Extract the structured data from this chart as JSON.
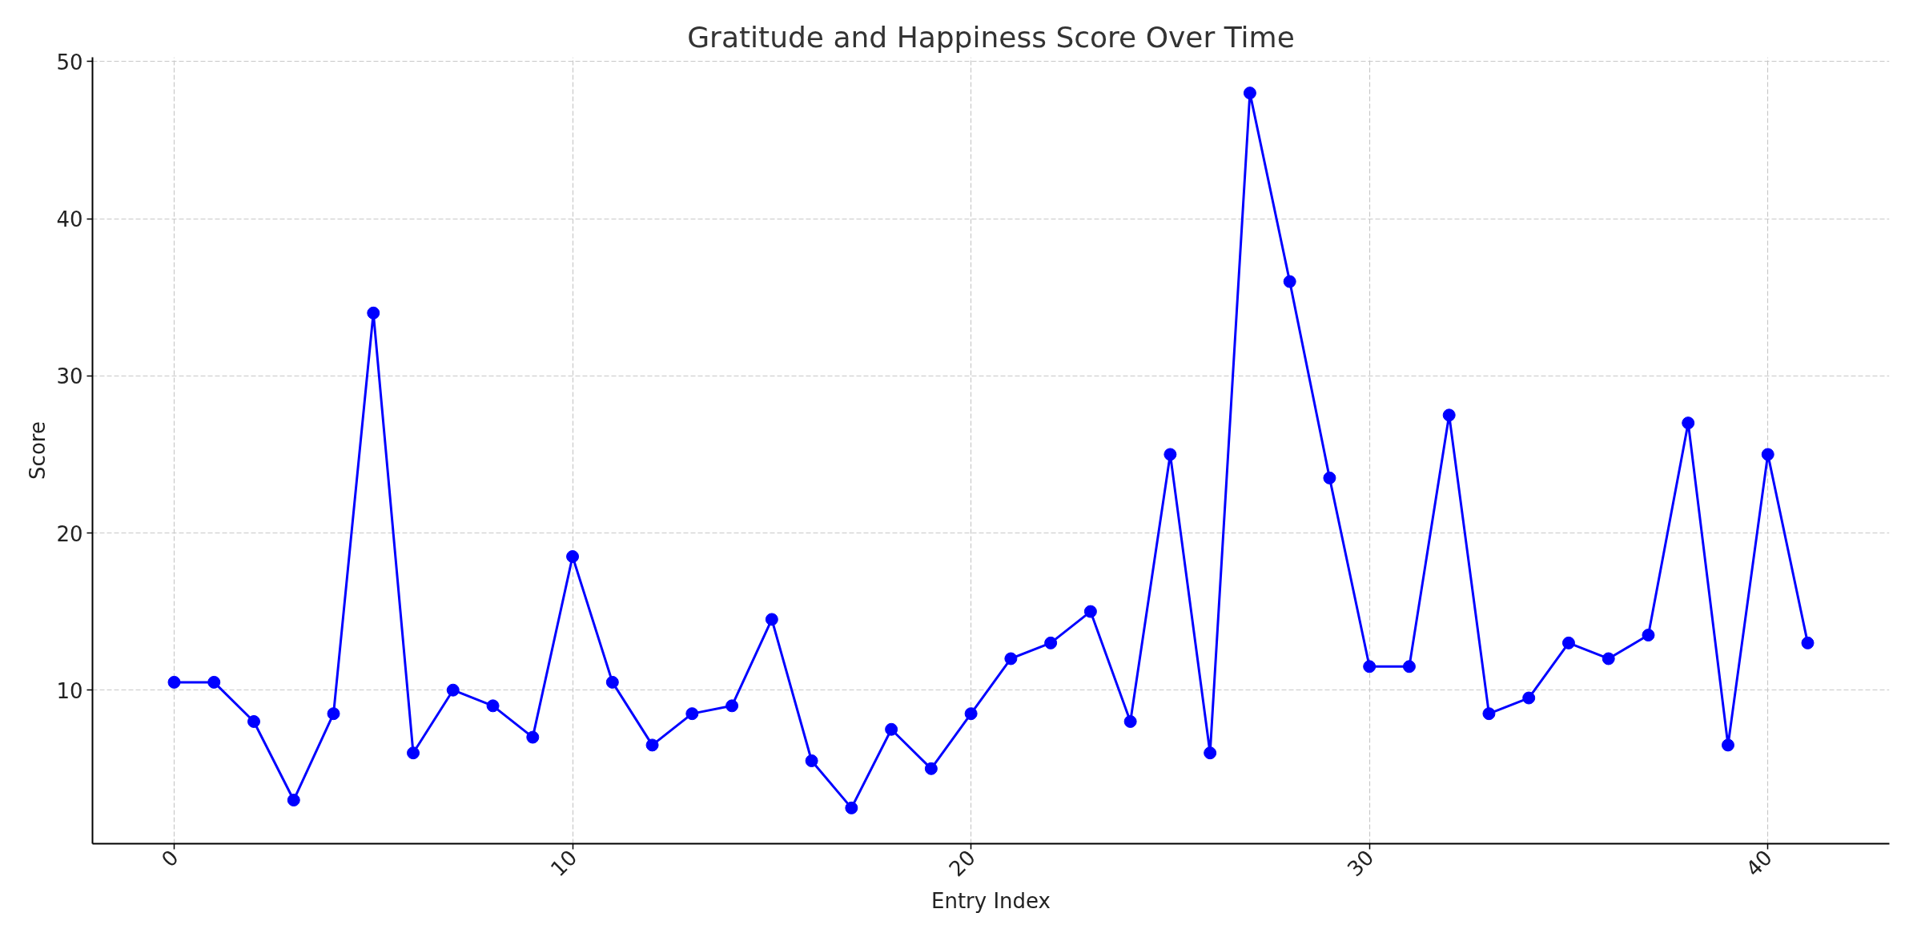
{
  "chart_data": {
    "type": "line",
    "title": "Gratitude and Happiness Score Over Time",
    "xlabel": "Entry Index",
    "ylabel": "Score",
    "x": [
      0,
      1,
      2,
      3,
      4,
      5,
      6,
      7,
      8,
      9,
      10,
      11,
      12,
      13,
      14,
      15,
      16,
      17,
      18,
      19,
      20,
      21,
      22,
      23,
      24,
      25,
      26,
      27,
      28,
      29,
      30,
      31,
      32,
      33,
      34,
      35,
      36,
      37,
      38,
      39,
      40,
      41
    ],
    "series": [
      {
        "color": "#0000ff",
        "values": [
          10.5,
          10.5,
          8,
          3,
          8.5,
          34,
          6,
          10,
          9,
          7,
          18.5,
          10.5,
          6.5,
          8.5,
          9,
          14.5,
          5.5,
          2.5,
          7.5,
          5,
          8.5,
          12,
          13,
          15,
          8,
          25,
          6,
          48,
          36,
          23.5,
          11.5,
          11.5,
          27.5,
          8.5,
          9.5,
          13,
          12,
          13.5,
          27,
          6.5,
          25,
          13
        ]
      }
    ],
    "xlim": [
      -2.05,
      43.05
    ],
    "ylim": [
      0.225,
      50.275
    ],
    "xticks": [
      0,
      10,
      20,
      30,
      40
    ],
    "yticks": [
      10,
      20,
      30,
      40,
      50
    ],
    "grid": true,
    "marker": "circle",
    "line_style": "solid"
  }
}
